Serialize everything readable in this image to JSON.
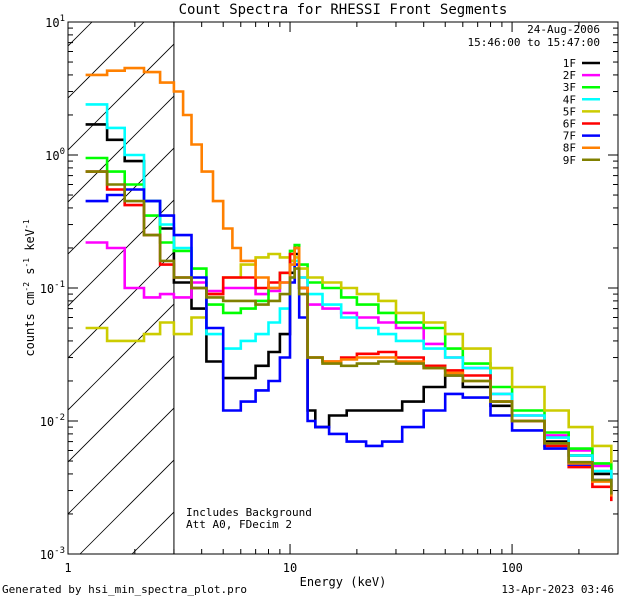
{
  "chart_data": {
    "type": "line",
    "title": "Count Spectra for RHESSI Front Segments",
    "xlabel": "Energy (keV)",
    "ylabel": "counts cm",
    "ylabel_sup1": "-2",
    "ylabel_mid": " s",
    "ylabel_sup2": "-1",
    "ylabel_end": " keV",
    "ylabel_sup3": "-1",
    "x_scale": "log",
    "y_scale": "log",
    "xlim": [
      1,
      300
    ],
    "ylim": [
      0.001,
      10
    ],
    "x_ticks": [
      {
        "value": 1,
        "label": "1"
      },
      {
        "value": 10,
        "label": "10"
      },
      {
        "value": 100,
        "label": "100"
      }
    ],
    "y_ticks": [
      {
        "value": 0.001,
        "base": "10",
        "exp": "-3"
      },
      {
        "value": 0.01,
        "base": "10",
        "exp": "-2"
      },
      {
        "value": 0.1,
        "base": "10",
        "exp": "-1"
      },
      {
        "value": 1,
        "base": "10",
        "exp": "0"
      },
      {
        "value": 10,
        "base": "10",
        "exp": "1"
      }
    ],
    "date": "24-Aug-2006",
    "time_range": "15:46:00 to 15:47:00",
    "annotation_lines": [
      "Includes Background",
      "Att A0, FDecim 2"
    ],
    "hatched_region": [
      1,
      3
    ],
    "series": [
      {
        "name": "1F",
        "color": "#000000",
        "points": [
          [
            1.2,
            1.7
          ],
          [
            1.5,
            1.3
          ],
          [
            1.8,
            0.9
          ],
          [
            2.2,
            0.45
          ],
          [
            2.6,
            0.28
          ],
          [
            3,
            0.11
          ],
          [
            3.6,
            0.07
          ],
          [
            4.2,
            0.028
          ],
          [
            5,
            0.021
          ],
          [
            6,
            0.021
          ],
          [
            7,
            0.026
          ],
          [
            8,
            0.033
          ],
          [
            9,
            0.045
          ],
          [
            10,
            0.13
          ],
          [
            10.5,
            0.18
          ],
          [
            11,
            0.1
          ],
          [
            12,
            0.012
          ],
          [
            13,
            0.009
          ],
          [
            15,
            0.011
          ],
          [
            18,
            0.012
          ],
          [
            22,
            0.012
          ],
          [
            26,
            0.012
          ],
          [
            32,
            0.014
          ],
          [
            40,
            0.018
          ],
          [
            50,
            0.022
          ],
          [
            60,
            0.018
          ],
          [
            80,
            0.013
          ],
          [
            100,
            0.01
          ],
          [
            140,
            0.007
          ],
          [
            180,
            0.0055
          ],
          [
            230,
            0.004
          ],
          [
            280,
            0.0032
          ]
        ]
      },
      {
        "name": "2F",
        "color": "#ff00ff",
        "points": [
          [
            1.2,
            0.22
          ],
          [
            1.5,
            0.2
          ],
          [
            1.8,
            0.1
          ],
          [
            2.2,
            0.085
          ],
          [
            2.6,
            0.09
          ],
          [
            3,
            0.085
          ],
          [
            3.6,
            0.11
          ],
          [
            4.2,
            0.095
          ],
          [
            5,
            0.1
          ],
          [
            6,
            0.1
          ],
          [
            7,
            0.09
          ],
          [
            8,
            0.095
          ],
          [
            9,
            0.11
          ],
          [
            10,
            0.16
          ],
          [
            10.5,
            0.2
          ],
          [
            11,
            0.12
          ],
          [
            12,
            0.075
          ],
          [
            14,
            0.07
          ],
          [
            17,
            0.065
          ],
          [
            20,
            0.06
          ],
          [
            25,
            0.055
          ],
          [
            30,
            0.05
          ],
          [
            40,
            0.038
          ],
          [
            50,
            0.03
          ],
          [
            60,
            0.025
          ],
          [
            80,
            0.016
          ],
          [
            100,
            0.011
          ],
          [
            140,
            0.0078
          ],
          [
            180,
            0.006
          ],
          [
            230,
            0.0046
          ],
          [
            280,
            0.0037
          ]
        ]
      },
      {
        "name": "3F",
        "color": "#00ff00",
        "points": [
          [
            1.2,
            0.95
          ],
          [
            1.5,
            0.75
          ],
          [
            1.8,
            0.6
          ],
          [
            2.2,
            0.35
          ],
          [
            2.6,
            0.22
          ],
          [
            3,
            0.19
          ],
          [
            3.6,
            0.14
          ],
          [
            4.2,
            0.075
          ],
          [
            5,
            0.065
          ],
          [
            6,
            0.07
          ],
          [
            7,
            0.08
          ],
          [
            8,
            0.1
          ],
          [
            9,
            0.13
          ],
          [
            10,
            0.19
          ],
          [
            10.5,
            0.21
          ],
          [
            11,
            0.15
          ],
          [
            12,
            0.11
          ],
          [
            14,
            0.1
          ],
          [
            17,
            0.085
          ],
          [
            20,
            0.075
          ],
          [
            25,
            0.065
          ],
          [
            30,
            0.055
          ],
          [
            40,
            0.05
          ],
          [
            50,
            0.035
          ],
          [
            60,
            0.027
          ],
          [
            80,
            0.018
          ],
          [
            100,
            0.012
          ],
          [
            140,
            0.0082
          ],
          [
            180,
            0.0062
          ],
          [
            230,
            0.0048
          ],
          [
            280,
            0.0038
          ]
        ]
      },
      {
        "name": "4F",
        "color": "#00ffff",
        "points": [
          [
            1.2,
            2.4
          ],
          [
            1.5,
            1.6
          ],
          [
            1.8,
            1.0
          ],
          [
            2.2,
            0.45
          ],
          [
            2.6,
            0.3
          ],
          [
            3,
            0.2
          ],
          [
            3.6,
            0.1
          ],
          [
            4.2,
            0.045
          ],
          [
            5,
            0.035
          ],
          [
            6,
            0.04
          ],
          [
            7,
            0.045
          ],
          [
            8,
            0.055
          ],
          [
            9,
            0.07
          ],
          [
            10,
            0.12
          ],
          [
            10.5,
            0.16
          ],
          [
            11,
            0.12
          ],
          [
            12,
            0.09
          ],
          [
            14,
            0.075
          ],
          [
            17,
            0.06
          ],
          [
            20,
            0.05
          ],
          [
            25,
            0.045
          ],
          [
            30,
            0.04
          ],
          [
            40,
            0.035
          ],
          [
            50,
            0.03
          ],
          [
            60,
            0.025
          ],
          [
            80,
            0.016
          ],
          [
            100,
            0.011
          ],
          [
            140,
            0.0075
          ],
          [
            180,
            0.0055
          ],
          [
            230,
            0.0042
          ],
          [
            280,
            0.0033
          ]
        ]
      },
      {
        "name": "5F",
        "color": "#cccc00",
        "points": [
          [
            1.2,
            0.05
          ],
          [
            1.5,
            0.04
          ],
          [
            1.8,
            0.04
          ],
          [
            2.2,
            0.045
          ],
          [
            2.6,
            0.055
          ],
          [
            3,
            0.045
          ],
          [
            3.6,
            0.06
          ],
          [
            4.2,
            0.09
          ],
          [
            5,
            0.12
          ],
          [
            6,
            0.15
          ],
          [
            7,
            0.17
          ],
          [
            8,
            0.18
          ],
          [
            9,
            0.17
          ],
          [
            10,
            0.16
          ],
          [
            10.5,
            0.17
          ],
          [
            11,
            0.14
          ],
          [
            12,
            0.12
          ],
          [
            14,
            0.11
          ],
          [
            17,
            0.1
          ],
          [
            20,
            0.09
          ],
          [
            25,
            0.08
          ],
          [
            30,
            0.065
          ],
          [
            40,
            0.055
          ],
          [
            50,
            0.045
          ],
          [
            60,
            0.035
          ],
          [
            80,
            0.025
          ],
          [
            100,
            0.018
          ],
          [
            140,
            0.012
          ],
          [
            180,
            0.009
          ],
          [
            230,
            0.0065
          ],
          [
            280,
            0.0048
          ]
        ]
      },
      {
        "name": "6F",
        "color": "#ff0000",
        "points": [
          [
            1.2,
            0.75
          ],
          [
            1.5,
            0.55
          ],
          [
            1.8,
            0.42
          ],
          [
            2.2,
            0.25
          ],
          [
            2.6,
            0.15
          ],
          [
            3,
            0.12
          ],
          [
            3.6,
            0.1
          ],
          [
            4.2,
            0.09
          ],
          [
            5,
            0.12
          ],
          [
            6,
            0.12
          ],
          [
            7,
            0.1
          ],
          [
            8,
            0.11
          ],
          [
            9,
            0.13
          ],
          [
            10,
            0.18
          ],
          [
            10.5,
            0.2
          ],
          [
            11,
            0.1
          ],
          [
            12,
            0.03
          ],
          [
            14,
            0.028
          ],
          [
            17,
            0.03
          ],
          [
            20,
            0.032
          ],
          [
            25,
            0.033
          ],
          [
            30,
            0.03
          ],
          [
            40,
            0.026
          ],
          [
            50,
            0.024
          ],
          [
            60,
            0.022
          ],
          [
            80,
            0.014
          ],
          [
            100,
            0.01
          ],
          [
            140,
            0.0065
          ],
          [
            180,
            0.0045
          ],
          [
            230,
            0.0032
          ],
          [
            280,
            0.0025
          ]
        ]
      },
      {
        "name": "7F",
        "color": "#0000ff",
        "points": [
          [
            1.2,
            0.45
          ],
          [
            1.5,
            0.5
          ],
          [
            1.8,
            0.55
          ],
          [
            2.2,
            0.45
          ],
          [
            2.6,
            0.35
          ],
          [
            3,
            0.25
          ],
          [
            3.6,
            0.12
          ],
          [
            4.2,
            0.05
          ],
          [
            5,
            0.012
          ],
          [
            6,
            0.014
          ],
          [
            7,
            0.017
          ],
          [
            8,
            0.02
          ],
          [
            9,
            0.03
          ],
          [
            10,
            0.11
          ],
          [
            10.5,
            0.15
          ],
          [
            11,
            0.06
          ],
          [
            12,
            0.01
          ],
          [
            13,
            0.009
          ],
          [
            15,
            0.008
          ],
          [
            18,
            0.007
          ],
          [
            22,
            0.0065
          ],
          [
            26,
            0.007
          ],
          [
            32,
            0.009
          ],
          [
            40,
            0.012
          ],
          [
            50,
            0.016
          ],
          [
            60,
            0.015
          ],
          [
            80,
            0.011
          ],
          [
            100,
            0.0085
          ],
          [
            140,
            0.0062
          ],
          [
            180,
            0.0047
          ],
          [
            230,
            0.0036
          ],
          [
            280,
            0.0028
          ]
        ]
      },
      {
        "name": "8F",
        "color": "#ff8000",
        "points": [
          [
            1.2,
            4
          ],
          [
            1.5,
            4.3
          ],
          [
            1.8,
            4.5
          ],
          [
            2.2,
            4.2
          ],
          [
            2.6,
            3.5
          ],
          [
            3,
            3
          ],
          [
            3.3,
            2
          ],
          [
            3.6,
            1.2
          ],
          [
            4,
            0.75
          ],
          [
            4.5,
            0.45
          ],
          [
            5,
            0.28
          ],
          [
            5.5,
            0.2
          ],
          [
            6,
            0.16
          ],
          [
            7,
            0.12
          ],
          [
            8,
            0.1
          ],
          [
            9,
            0.11
          ],
          [
            10,
            0.15
          ],
          [
            10.5,
            0.2
          ],
          [
            11,
            0.1
          ],
          [
            12,
            0.03
          ],
          [
            14,
            0.028
          ],
          [
            17,
            0.029
          ],
          [
            20,
            0.03
          ],
          [
            25,
            0.03
          ],
          [
            30,
            0.028
          ],
          [
            40,
            0.025
          ],
          [
            50,
            0.023
          ],
          [
            60,
            0.02
          ],
          [
            80,
            0.014
          ],
          [
            100,
            0.01
          ],
          [
            140,
            0.0068
          ],
          [
            180,
            0.0048
          ],
          [
            230,
            0.0035
          ],
          [
            280,
            0.0027
          ]
        ]
      },
      {
        "name": "9F",
        "color": "#808000",
        "points": [
          [
            1.2,
            0.75
          ],
          [
            1.5,
            0.6
          ],
          [
            1.8,
            0.45
          ],
          [
            2.2,
            0.25
          ],
          [
            2.6,
            0.16
          ],
          [
            3,
            0.12
          ],
          [
            3.6,
            0.1
          ],
          [
            4.2,
            0.085
          ],
          [
            5,
            0.08
          ],
          [
            6,
            0.08
          ],
          [
            7,
            0.075
          ],
          [
            8,
            0.08
          ],
          [
            9,
            0.09
          ],
          [
            10,
            0.12
          ],
          [
            10.5,
            0.14
          ],
          [
            11,
            0.09
          ],
          [
            12,
            0.03
          ],
          [
            14,
            0.027
          ],
          [
            17,
            0.026
          ],
          [
            20,
            0.027
          ],
          [
            25,
            0.028
          ],
          [
            30,
            0.027
          ],
          [
            40,
            0.025
          ],
          [
            50,
            0.022
          ],
          [
            60,
            0.02
          ],
          [
            80,
            0.014
          ],
          [
            100,
            0.01
          ],
          [
            140,
            0.0068
          ],
          [
            180,
            0.0049
          ],
          [
            230,
            0.0036
          ],
          [
            280,
            0.0028
          ]
        ]
      }
    ]
  },
  "footer": {
    "generated_by": "Generated by hsi_min_spectra_plot.pro",
    "timestamp": "13-Apr-2023 03:46"
  }
}
